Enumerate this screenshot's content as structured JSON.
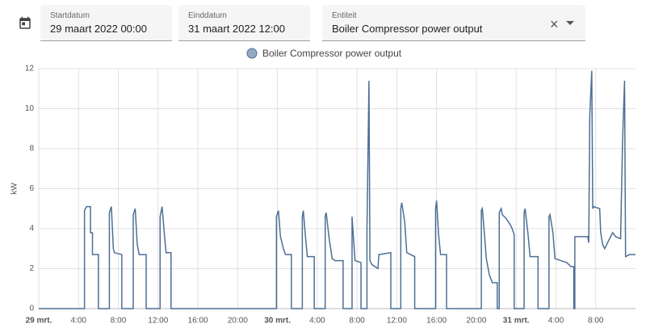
{
  "controls": {
    "start_label": "Startdatum",
    "start_value": "29 maart 2022 00:00",
    "end_label": "Einddatum",
    "end_value": "31 maart 2022 12:00",
    "entity_label": "Entiteit",
    "entity_value": "Boiler Compressor power output"
  },
  "chart_data": {
    "type": "line",
    "y_label": "kW",
    "grid": true,
    "xlim": [
      0,
      60
    ],
    "ylim": [
      0,
      12
    ],
    "yticks": [
      0,
      2,
      4,
      6,
      8,
      10,
      12
    ],
    "xticks": [
      {
        "value": 0,
        "label": "29 mrt."
      },
      {
        "value": 4,
        "label": "4:00"
      },
      {
        "value": 8,
        "label": "8:00"
      },
      {
        "value": 12,
        "label": "12:00"
      },
      {
        "value": 16,
        "label": "16:00"
      },
      {
        "value": 20,
        "label": "20:00"
      },
      {
        "value": 24,
        "label": "30 mrt."
      },
      {
        "value": 28,
        "label": "4:00"
      },
      {
        "value": 32,
        "label": "8:00"
      },
      {
        "value": 36,
        "label": "12:00"
      },
      {
        "value": 40,
        "label": "16:00"
      },
      {
        "value": 44,
        "label": "20:00"
      },
      {
        "value": 48,
        "label": "31 mrt."
      },
      {
        "value": 52,
        "label": "4:00"
      },
      {
        "value": 56,
        "label": "8:00"
      }
    ],
    "x": [
      0,
      4.6,
      4.6,
      4.8,
      5.2,
      5.2,
      5.4,
      5.4,
      6.0,
      6.0,
      7.1,
      7.1,
      7.3,
      7.5,
      7.6,
      8.35,
      8.35,
      9.5,
      9.5,
      9.7,
      9.9,
      10.1,
      10.8,
      10.8,
      12.2,
      12.2,
      12.4,
      12.6,
      12.8,
      13.3,
      13.3,
      23.9,
      23.9,
      24.1,
      24.3,
      24.6,
      24.8,
      25.4,
      25.4,
      26.5,
      26.5,
      26.6,
      26.8,
      27.0,
      27.7,
      27.7,
      28.8,
      28.8,
      28.9,
      29.2,
      29.5,
      29.8,
      30.6,
      30.6,
      31.5,
      31.5,
      31.8,
      32.4,
      32.4,
      33.0,
      33.0,
      33.2,
      33.3,
      33.5,
      34.1,
      34.2,
      35.4,
      35.4,
      36.4,
      36.4,
      36.5,
      36.8,
      37.0,
      37.8,
      37.8,
      39.9,
      39.9,
      40.0,
      40.2,
      40.4,
      41.0,
      41.0,
      44.5,
      44.5,
      44.6,
      44.8,
      45.0,
      45.3,
      45.6,
      46.1,
      46.1,
      46.3,
      46.3,
      46.5,
      46.6,
      47.0,
      47.4,
      47.6,
      47.8,
      47.8,
      48.8,
      48.8,
      48.9,
      49.2,
      49.4,
      50.2,
      50.2,
      51.3,
      51.3,
      51.4,
      51.7,
      51.9,
      52.5,
      53.1,
      53.5,
      53.8,
      53.8,
      53.9,
      53.9,
      55.2,
      55.3,
      55.4,
      55.6,
      55.7,
      55.8,
      56.4,
      56.5,
      56.7,
      56.9,
      57.3,
      57.7,
      58.0,
      58.5,
      58.7,
      58.9,
      59.0,
      59.4,
      60
    ],
    "series": [
      {
        "name": "Boiler Compressor power output",
        "color": "#4d6f96",
        "values": [
          0,
          0,
          4.9,
          5.1,
          5.1,
          3.8,
          3.8,
          2.7,
          2.7,
          0,
          0,
          4.8,
          5.1,
          3.0,
          2.8,
          2.7,
          0,
          0,
          4.7,
          5.0,
          3.2,
          2.7,
          2.7,
          0,
          0,
          4.6,
          5.1,
          3.9,
          2.8,
          2.8,
          0,
          0,
          4.6,
          4.9,
          3.6,
          3.0,
          2.7,
          2.7,
          0,
          0,
          4.6,
          4.9,
          3.7,
          2.6,
          2.6,
          0,
          0,
          4.6,
          4.8,
          3.5,
          2.5,
          2.4,
          2.4,
          0,
          0,
          4.6,
          2.4,
          2.3,
          0,
          0,
          3.9,
          11.4,
          2.4,
          2.2,
          2.0,
          2.7,
          2.8,
          0,
          0,
          5.0,
          5.3,
          4.3,
          2.8,
          2.6,
          0,
          0,
          5.0,
          5.4,
          3.7,
          2.7,
          2.7,
          0,
          0,
          4.9,
          5.0,
          3.8,
          2.5,
          1.7,
          1.3,
          1.3,
          0,
          0,
          4.8,
          5.0,
          4.7,
          4.5,
          4.2,
          4.0,
          3.7,
          0,
          0,
          4.8,
          5.0,
          3.7,
          2.6,
          2.6,
          0,
          0,
          4.6,
          4.7,
          3.8,
          2.5,
          2.4,
          2.3,
          2.1,
          2.1,
          0,
          0,
          3.6,
          3.6,
          3.3,
          9.6,
          11.9,
          5.0,
          5.1,
          5.0,
          3.8,
          3.2,
          3.0,
          3.4,
          3.8,
          3.6,
          3.5,
          8.4,
          11.4,
          2.6,
          2.7,
          2.7
        ]
      }
    ]
  }
}
